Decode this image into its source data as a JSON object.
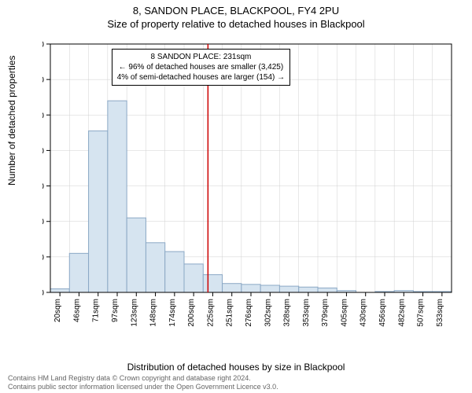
{
  "titles": {
    "main": "8, SANDON PLACE, BLACKPOOL, FY4 2PU",
    "sub": "Size of property relative to detached houses in Blackpool"
  },
  "axes": {
    "y_label": "Number of detached properties",
    "x_label": "Distribution of detached houses by size in Blackpool"
  },
  "chart": {
    "type": "histogram",
    "y_max": 1400,
    "y_ticks": [
      0,
      200,
      400,
      600,
      800,
      1000,
      1200,
      1400
    ],
    "x_categories": [
      "20sqm",
      "46sqm",
      "71sqm",
      "97sqm",
      "123sqm",
      "148sqm",
      "174sqm",
      "200sqm",
      "225sqm",
      "251sqm",
      "276sqm",
      "302sqm",
      "328sqm",
      "353sqm",
      "379sqm",
      "405sqm",
      "430sqm",
      "456sqm",
      "482sqm",
      "507sqm",
      "533sqm"
    ],
    "bar_values": [
      20,
      220,
      910,
      1080,
      420,
      280,
      230,
      160,
      100,
      50,
      45,
      40,
      35,
      30,
      25,
      10,
      0,
      5,
      10,
      5,
      5
    ],
    "bar_fill": "#d6e4f0",
    "bar_border": "#8ba8c5",
    "grid_color": "#d0d0d0",
    "background_color": "#ffffff",
    "marker_x_index": 8.25,
    "marker_color": "#cc0000"
  },
  "info_box": {
    "line1": "8 SANDON PLACE: 231sqm",
    "line2": "← 96% of detached houses are smaller (3,425)",
    "line3": "4% of semi-detached houses are larger (154) →",
    "border_color": "#000000"
  },
  "attribution": {
    "line1": "Contains HM Land Registry data © Crown copyright and database right 2024.",
    "line2": "Contains public sector information licensed under the Open Government Licence v3.0."
  }
}
